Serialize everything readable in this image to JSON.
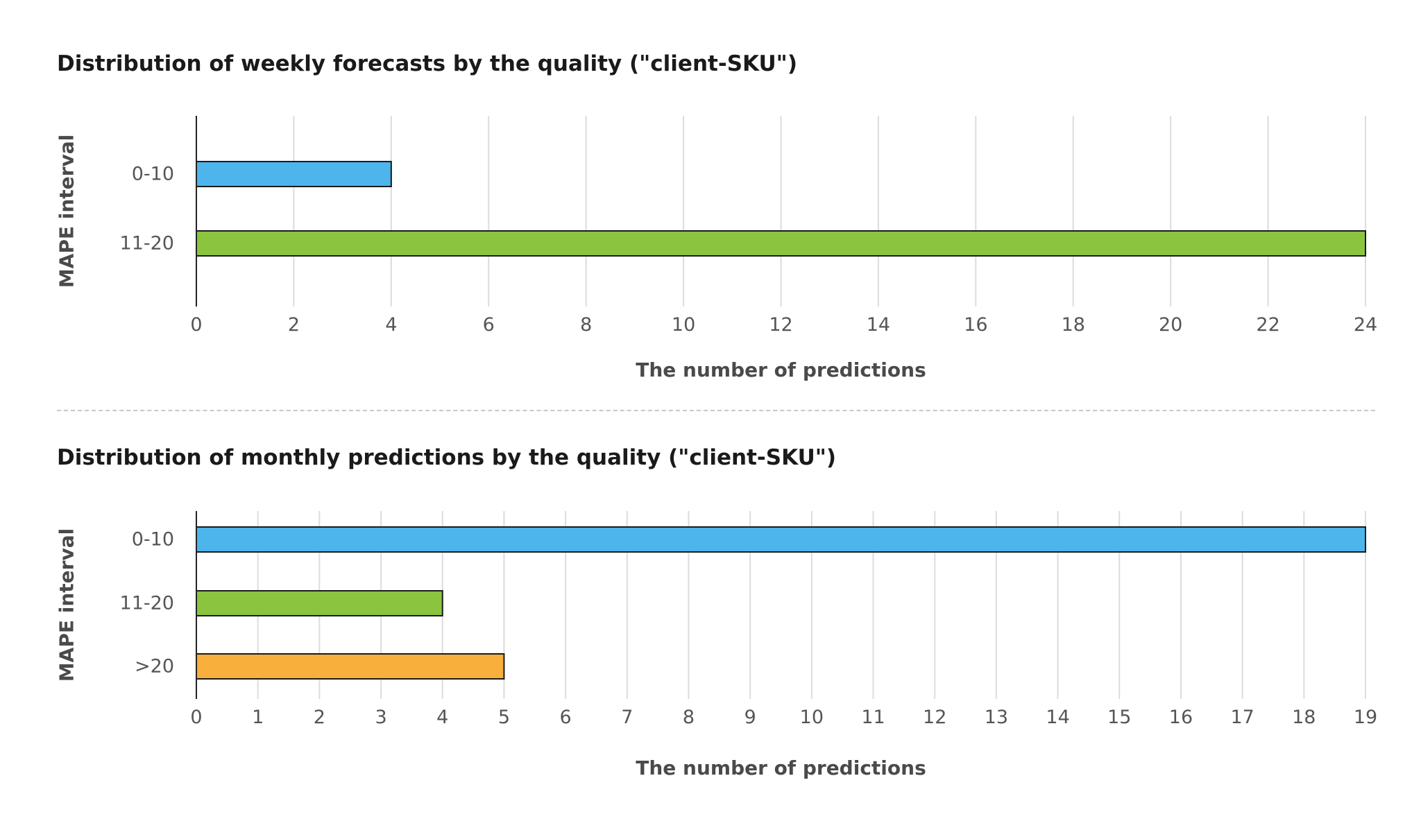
{
  "chart_data": [
    {
      "type": "bar",
      "orientation": "horizontal",
      "title": "Distribution of weekly forecasts by the quality (\"client-SKU\")",
      "xlabel": "The number of predictions",
      "ylabel": "MAPE interval",
      "categories": [
        "0-10",
        "11-20"
      ],
      "values": [
        4,
        24
      ],
      "bar_colors": [
        "#4db5ec",
        "#8bc43f"
      ],
      "xlim": [
        0,
        24
      ],
      "xticks": [
        0,
        2,
        4,
        6,
        8,
        10,
        12,
        14,
        16,
        18,
        20,
        22,
        24
      ],
      "grid": "vertical",
      "legend": "none"
    },
    {
      "type": "bar",
      "orientation": "horizontal",
      "title": "Distribution of monthly predictions by the quality (\"client-SKU\")",
      "xlabel": "The number of predictions",
      "ylabel": "MAPE interval",
      "categories": [
        "0-10",
        "11-20",
        ">20"
      ],
      "values": [
        19,
        4,
        5
      ],
      "bar_colors": [
        "#4db5ec",
        "#8bc43f",
        "#f8af3c"
      ],
      "xlim": [
        0,
        19
      ],
      "xticks": [
        0,
        1,
        2,
        3,
        4,
        5,
        6,
        7,
        8,
        9,
        10,
        11,
        12,
        13,
        14,
        15,
        16,
        17,
        18,
        19
      ],
      "grid": "vertical",
      "legend": "none"
    }
  ],
  "colors": {
    "axis": "#222222",
    "grid": "#dcdcdc",
    "tick_text": "#555555",
    "label_text": "#4a4a4a",
    "bar_stroke": "#1a1a1a",
    "separator": "#c8c8c8"
  }
}
